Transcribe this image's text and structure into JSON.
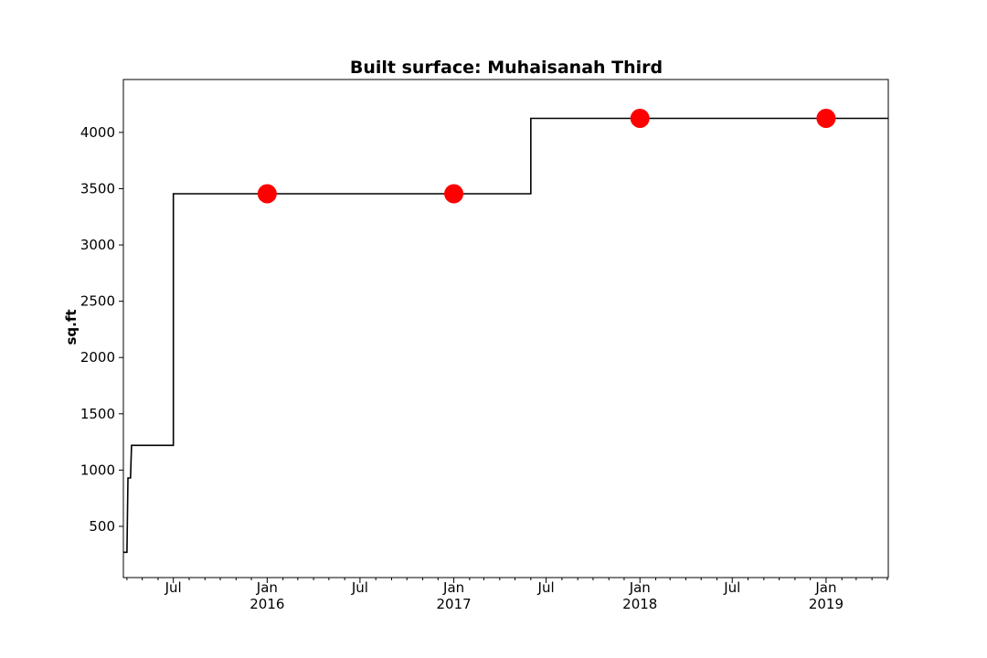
{
  "chart_data": {
    "type": "line",
    "title": "Built surface: Muhaisanah Third",
    "xlabel": "",
    "ylabel": "sq.ft",
    "xlim": [
      "2015-03-25",
      "2019-05-03"
    ],
    "ylim": [
      45,
      4470
    ],
    "grid": false,
    "y_ticks": [
      500,
      1000,
      1500,
      2000,
      2500,
      3000,
      3500,
      4000
    ],
    "x_major_ticks": [
      {
        "date": "2015-07-01",
        "label": "Jul",
        "sublabel": ""
      },
      {
        "date": "2016-01-01",
        "label": "Jan",
        "sublabel": "2016"
      },
      {
        "date": "2016-07-01",
        "label": "Jul",
        "sublabel": ""
      },
      {
        "date": "2017-01-01",
        "label": "Jan",
        "sublabel": "2017"
      },
      {
        "date": "2017-07-01",
        "label": "Jul",
        "sublabel": ""
      },
      {
        "date": "2018-01-01",
        "label": "Jan",
        "sublabel": "2018"
      },
      {
        "date": "2018-07-01",
        "label": "Jul",
        "sublabel": ""
      },
      {
        "date": "2019-01-01",
        "label": "Jan",
        "sublabel": "2019"
      }
    ],
    "series": [
      {
        "style": "step",
        "color": "#000000",
        "points": [
          {
            "x": "2015-03-25",
            "y": 270
          },
          {
            "x": "2015-04-01",
            "y": 270
          },
          {
            "x": "2015-04-03",
            "y": 930
          },
          {
            "x": "2015-04-08",
            "y": 930
          },
          {
            "x": "2015-04-10",
            "y": 1220
          },
          {
            "x": "2015-07-01",
            "y": 1220
          },
          {
            "x": "2015-07-01",
            "y": 3455
          },
          {
            "x": "2017-06-01",
            "y": 3455
          },
          {
            "x": "2017-06-01",
            "y": 4125
          },
          {
            "x": "2019-05-03",
            "y": 4125
          }
        ]
      },
      {
        "style": "markers",
        "color": "#ff0000",
        "points": [
          {
            "x": "2016-01-01",
            "y": 3455
          },
          {
            "x": "2017-01-01",
            "y": 3455
          },
          {
            "x": "2018-01-01",
            "y": 4125
          },
          {
            "x": "2019-01-01",
            "y": 4125
          }
        ]
      }
    ]
  }
}
